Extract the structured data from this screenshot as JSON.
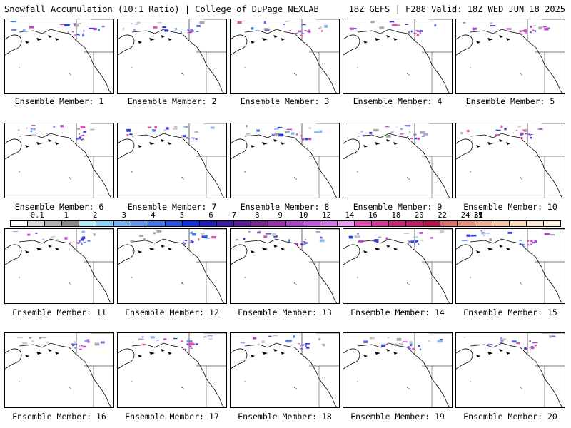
{
  "header": {
    "title_left": "Snowfall Accumulation (10:1 Ratio) | College of DuPage NEXLAB",
    "title_right": "18Z GEFS | F288 Valid: 18Z WED JUN 18 2025"
  },
  "panels": [
    {
      "label": "Ensemble Member: 1"
    },
    {
      "label": "Ensemble Member: 2"
    },
    {
      "label": "Ensemble Member: 3"
    },
    {
      "label": "Ensemble Member: 4"
    },
    {
      "label": "Ensemble Member: 5"
    },
    {
      "label": "Ensemble Member: 6"
    },
    {
      "label": "Ensemble Member: 7"
    },
    {
      "label": "Ensemble Member: 8"
    },
    {
      "label": "Ensemble Member: 9"
    },
    {
      "label": "Ensemble Member: 10"
    },
    {
      "label": "Ensemble Member: 11"
    },
    {
      "label": "Ensemble Member: 12"
    },
    {
      "label": "Ensemble Member: 13"
    },
    {
      "label": "Ensemble Member: 14"
    },
    {
      "label": "Ensemble Member: 15"
    },
    {
      "label": "Ensemble Member: 16"
    },
    {
      "label": "Ensemble Member: 17"
    },
    {
      "label": "Ensemble Member: 18"
    },
    {
      "label": "Ensemble Member: 19"
    },
    {
      "label": "Ensemble Member: 20"
    }
  ],
  "colorbar": {
    "labels": [
      "0.1",
      "1",
      "2",
      "3",
      "4",
      "5",
      "6",
      "7",
      "8",
      "9",
      "10",
      "12",
      "14",
      "16",
      "18",
      "20",
      "22",
      "24",
      "27",
      "31",
      "35",
      "39"
    ],
    "colors": [
      "#ffffff",
      "#d8d8d8",
      "#b0b0b0",
      "#8a8a8a",
      "#b4ecf8",
      "#8cd2f6",
      "#78b4f0",
      "#6496ee",
      "#4678e8",
      "#2c50e2",
      "#1432dc",
      "#1e1eb4",
      "#3c1ea0",
      "#5a1e96",
      "#78288c",
      "#9632aa",
      "#aa46c8",
      "#be5adc",
      "#d278e6",
      "#e6a0ee",
      "#dc50b4",
      "#d23c96",
      "#c8287a",
      "#be1e64",
      "#b4144b",
      "#dc6e6e",
      "#e69080",
      "#f0ae96",
      "#f6c8aa",
      "#fadcc0",
      "#fdecd8",
      "#fff4e6"
    ]
  }
}
